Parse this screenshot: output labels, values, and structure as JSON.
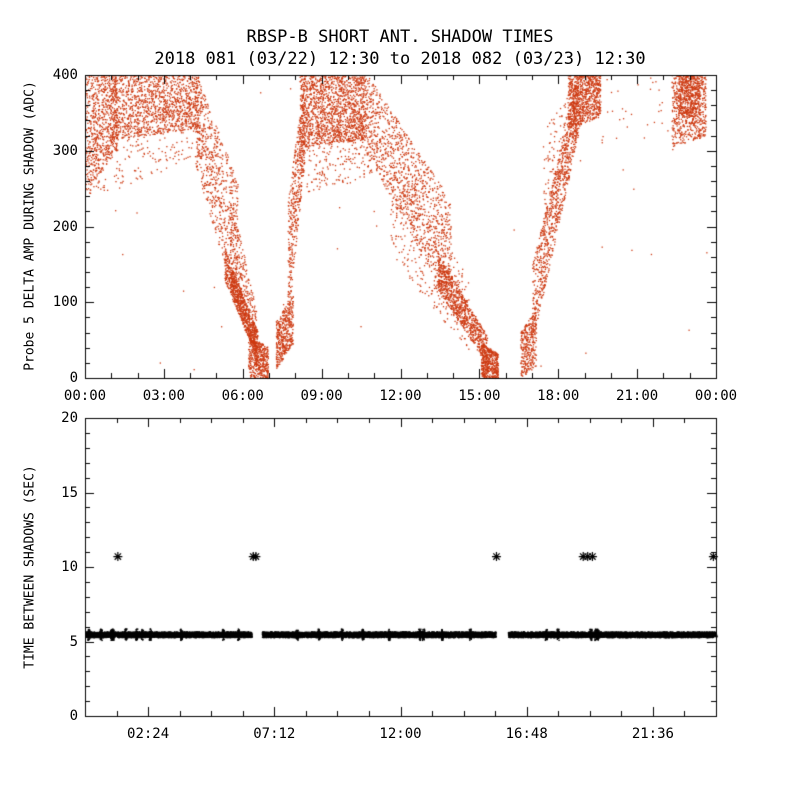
{
  "header": {
    "title": "RBSP-B SHORT ANT. SHADOW TIMES",
    "subtitle": "2018 081 (03/22) 12:30 to 2018 082 (03/23) 12:30"
  },
  "chart_data": [
    {
      "type": "scatter",
      "panel": "top",
      "title": "RBSP-B SHORT ANT. SHADOW TIMES",
      "subtitle": "2018 081 (03/22) 12:30 to 2018 082 (03/23) 12:30",
      "xlabel": "",
      "ylabel": "Probe 5 DELTA AMP DURING SHADOW (ADC)",
      "xlim_hours": [
        0,
        24
      ],
      "ylim": [
        0,
        400
      ],
      "xticks_hours": [
        0,
        3,
        6,
        9,
        12,
        15,
        18,
        21,
        24
      ],
      "xtick_labels": [
        "00:00",
        "03:00",
        "06:00",
        "09:00",
        "12:00",
        "15:00",
        "18:00",
        "21:00",
        "00:00"
      ],
      "yticks": [
        0,
        100,
        200,
        300,
        400
      ],
      "x_minor_step_hours": 1,
      "y_minor_step": 20,
      "marker": "dot",
      "marker_color": "#cd3a12",
      "point_bands": [
        [
          0.0,
          1.2,
          245,
          403,
          300,
          403,
          700
        ],
        [
          1.0,
          4.3,
          315,
          403,
          330,
          403,
          1300
        ],
        [
          0.1,
          4.5,
          235,
          330,
          295,
          375,
          260
        ],
        [
          4.2,
          5.8,
          280,
          403,
          90,
          260,
          650
        ],
        [
          5.5,
          6.5,
          120,
          250,
          20,
          90,
          380
        ],
        [
          5.3,
          6.55,
          128,
          172,
          25,
          62,
          700
        ],
        [
          6.2,
          6.95,
          2,
          58,
          0,
          42,
          430
        ],
        [
          7.25,
          7.9,
          12,
          75,
          45,
          110,
          430
        ],
        [
          7.7,
          8.35,
          70,
          230,
          290,
          403,
          480
        ],
        [
          8.15,
          10.7,
          305,
          403,
          315,
          403,
          1500
        ],
        [
          8.4,
          10.9,
          245,
          335,
          265,
          350,
          260
        ],
        [
          10.7,
          13.9,
          295,
          403,
          95,
          235,
          1100
        ],
        [
          11.6,
          14.6,
          160,
          300,
          35,
          130,
          330
        ],
        [
          13.4,
          15.3,
          118,
          168,
          16,
          55,
          800
        ],
        [
          15.05,
          15.7,
          1,
          48,
          0,
          32,
          430
        ],
        [
          16.55,
          17.15,
          1,
          60,
          15,
          95,
          330
        ],
        [
          17.0,
          18.75,
          45,
          150,
          320,
          403,
          850
        ],
        [
          17.4,
          18.9,
          180,
          330,
          340,
          403,
          220
        ],
        [
          18.35,
          19.6,
          330,
          403,
          345,
          403,
          750
        ],
        [
          19.6,
          22.25,
          300,
          400,
          310,
          400,
          30
        ],
        [
          22.3,
          23.6,
          305,
          403,
          320,
          403,
          650
        ],
        [
          22.55,
          23.35,
          345,
          403,
          345,
          403,
          380
        ],
        [
          0.0,
          24.0,
          5,
          400,
          5,
          400,
          45
        ]
      ]
    },
    {
      "type": "scatter",
      "panel": "bottom",
      "xlabel": "",
      "ylabel": "TIME BETWEEN SHADOWS (SEC)",
      "xlim_hours": [
        0,
        24
      ],
      "ylim": [
        0,
        20
      ],
      "xticks_hours": [
        2.4,
        7.2,
        12.0,
        16.8,
        21.6
      ],
      "xtick_labels": [
        "02:24",
        "07:12",
        "12:00",
        "16:48",
        "21:36"
      ],
      "yticks": [
        0,
        5,
        10,
        15,
        20
      ],
      "x_minor_step_hours": 1.2,
      "y_minor_step": 1,
      "marker": "dot",
      "marker_color": "#000000",
      "main_band": {
        "y_range_sec": [
          5.32,
          5.68
        ],
        "segments_hours": [
          [
            0.0,
            6.32
          ],
          [
            6.72,
            15.6
          ],
          [
            16.08,
            24.0
          ]
        ],
        "points_per_hour": 430
      },
      "whisker_clusters": {
        "count": 26,
        "y_range_sec": [
          5.12,
          5.88
        ]
      },
      "outliers": {
        "marker": "asterisk",
        "y_sec": 10.7,
        "times_hours": [
          1.25,
          6.4,
          6.5,
          15.65,
          18.95,
          19.12,
          19.3,
          23.9
        ]
      }
    }
  ]
}
